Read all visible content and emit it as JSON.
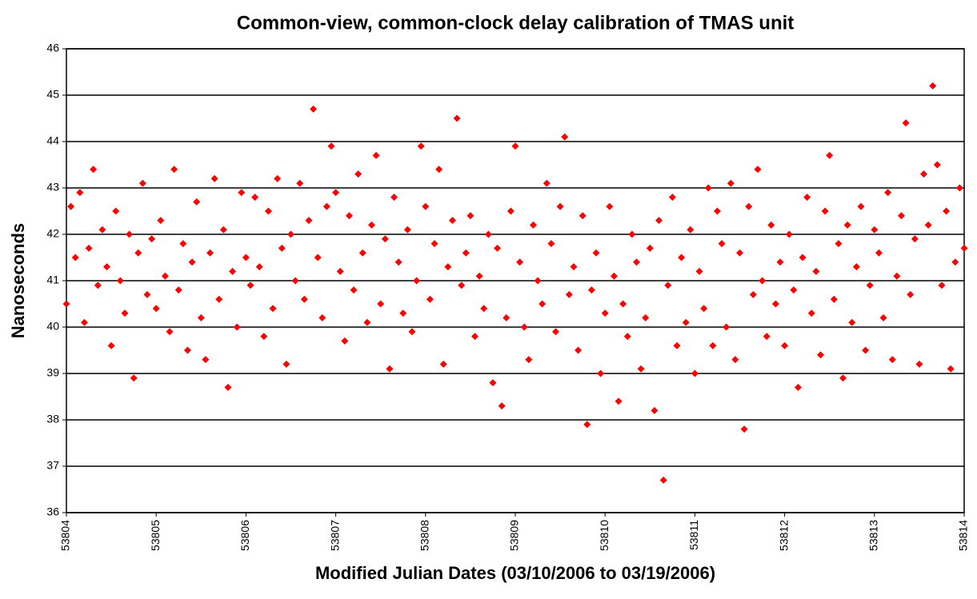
{
  "chart_data": {
    "type": "scatter",
    "title": "Common-view, common-clock delay calibration of TMAS unit",
    "x_label": "Modified Julian Dates (03/10/2006 to 03/19/2006)",
    "y_label": "Nanoseconds",
    "xlim": [
      53804,
      53814
    ],
    "xticks": [
      53804,
      53805,
      53806,
      53807,
      53808,
      53809,
      53810,
      53811,
      53812,
      53813,
      53814
    ],
    "ylim": [
      36,
      46
    ],
    "yticks": [
      36,
      37,
      38,
      39,
      40,
      41,
      42,
      43,
      44,
      45,
      46
    ],
    "grid": true,
    "color": "#ff0000",
    "x": [
      53804,
      53804.05,
      53804.1,
      53804.15,
      53804.2,
      53804.25,
      53804.3,
      53804.35,
      53804.4,
      53804.45,
      53804.5,
      53804.55,
      53804.6,
      53804.65,
      53804.7,
      53804.75,
      53804.8,
      53804.85,
      53804.9,
      53804.95,
      53805,
      53805.05,
      53805.1,
      53805.15,
      53805.2,
      53805.25,
      53805.3,
      53805.35,
      53805.4,
      53805.45,
      53805.5,
      53805.55,
      53805.6,
      53805.65,
      53805.7,
      53805.75,
      53805.8,
      53805.85,
      53805.9,
      53805.95,
      53806,
      53806.05,
      53806.1,
      53806.15,
      53806.2,
      53806.25,
      53806.3,
      53806.35,
      53806.4,
      53806.45,
      53806.5,
      53806.55,
      53806.6,
      53806.65,
      53806.7,
      53806.75,
      53806.8,
      53806.85,
      53806.9,
      53806.95,
      53807,
      53807.05,
      53807.1,
      53807.15,
      53807.2,
      53807.25,
      53807.3,
      53807.35,
      53807.4,
      53807.45,
      53807.5,
      53807.55,
      53807.6,
      53807.65,
      53807.7,
      53807.75,
      53807.8,
      53807.85,
      53807.9,
      53807.95,
      53808,
      53808.05,
      53808.1,
      53808.15,
      53808.2,
      53808.25,
      53808.3,
      53808.35,
      53808.4,
      53808.45,
      53808.5,
      53808.55,
      53808.6,
      53808.65,
      53808.7,
      53808.75,
      53808.8,
      53808.85,
      53808.9,
      53808.95,
      53809,
      53809.05,
      53809.1,
      53809.15,
      53809.2,
      53809.25,
      53809.3,
      53809.35,
      53809.4,
      53809.45,
      53809.5,
      53809.55,
      53809.6,
      53809.65,
      53809.7,
      53809.75,
      53809.8,
      53809.85,
      53809.9,
      53809.95,
      53810,
      53810.05,
      53810.1,
      53810.15,
      53810.2,
      53810.25,
      53810.3,
      53810.35,
      53810.4,
      53810.45,
      53810.5,
      53810.55,
      53810.6,
      53810.65,
      53810.7,
      53810.75,
      53810.8,
      53810.85,
      53810.9,
      53810.95,
      53811,
      53811.05,
      53811.1,
      53811.15,
      53811.2,
      53811.25,
      53811.3,
      53811.35,
      53811.4,
      53811.45,
      53811.5,
      53811.55,
      53811.6,
      53811.65,
      53811.7,
      53811.75,
      53811.8,
      53811.85,
      53811.9,
      53811.95,
      53812,
      53812.05,
      53812.1,
      53812.15,
      53812.2,
      53812.25,
      53812.3,
      53812.35,
      53812.4,
      53812.45,
      53812.5,
      53812.55,
      53812.6,
      53812.65,
      53812.7,
      53812.75,
      53812.8,
      53812.85,
      53812.9,
      53812.95,
      53813,
      53813.05,
      53813.1,
      53813.15,
      53813.2,
      53813.25,
      53813.3,
      53813.35,
      53813.4,
      53813.45,
      53813.5,
      53813.55,
      53813.6,
      53813.65,
      53813.7,
      53813.75,
      53813.8,
      53813.85,
      53813.9,
      53813.95,
      53814
    ],
    "values": [
      40.5,
      42.6,
      41.5,
      42.9,
      40.1,
      41.7,
      43.4,
      40.9,
      42.1,
      41.3,
      39.6,
      42.5,
      41.0,
      40.3,
      42.0,
      38.9,
      41.6,
      43.1,
      40.7,
      41.9,
      40.4,
      42.3,
      41.1,
      39.9,
      43.4,
      40.8,
      41.8,
      39.5,
      41.4,
      42.7,
      40.2,
      39.3,
      41.6,
      43.2,
      40.6,
      42.1,
      38.7,
      41.2,
      40.0,
      42.9,
      41.5,
      40.9,
      42.8,
      41.3,
      39.8,
      42.5,
      40.4,
      43.2,
      41.7,
      39.2,
      42.0,
      41.0,
      43.1,
      40.6,
      42.3,
      44.7,
      41.5,
      40.2,
      42.6,
      43.9,
      42.9,
      41.2,
      39.7,
      42.4,
      40.8,
      43.3,
      41.6,
      40.1,
      42.2,
      43.7,
      40.5,
      41.9,
      39.1,
      42.8,
      41.4,
      40.3,
      42.1,
      39.9,
      41.0,
      43.9,
      42.6,
      40.6,
      41.8,
      43.4,
      39.2,
      41.3,
      42.3,
      44.5,
      40.9,
      41.6,
      42.4,
      39.8,
      41.1,
      40.4,
      42.0,
      38.8,
      41.7,
      38.3,
      40.2,
      42.5,
      43.9,
      41.4,
      40.0,
      39.3,
      42.2,
      41.0,
      40.5,
      43.1,
      41.8,
      39.9,
      42.6,
      44.1,
      40.7,
      41.3,
      39.5,
      42.4,
      37.9,
      40.8,
      41.6,
      39.0,
      40.3,
      42.6,
      41.1,
      38.4,
      40.5,
      39.8,
      42.0,
      41.4,
      39.1,
      40.2,
      41.7,
      38.2,
      42.3,
      36.7,
      40.9,
      42.8,
      39.6,
      41.5,
      40.1,
      42.1,
      39.0,
      41.2,
      40.4,
      43.0,
      39.6,
      42.5,
      41.8,
      40.0,
      43.1,
      39.3,
      41.6,
      37.8,
      42.6,
      40.7,
      43.4,
      41.0,
      39.8,
      42.2,
      40.5,
      41.4,
      39.6,
      42.0,
      40.8,
      38.7,
      41.5,
      42.8,
      40.3,
      41.2,
      39.4,
      42.5,
      43.7,
      40.6,
      41.8,
      38.9,
      42.2,
      40.1,
      41.3,
      42.6,
      39.5,
      40.9,
      42.1,
      41.6,
      40.2,
      42.9,
      39.3,
      41.1,
      42.4,
      44.4,
      40.7,
      41.9,
      39.2,
      43.3,
      42.2,
      45.2,
      43.5,
      40.9,
      42.5,
      39.1,
      41.4,
      43.0,
      41.7
    ]
  }
}
